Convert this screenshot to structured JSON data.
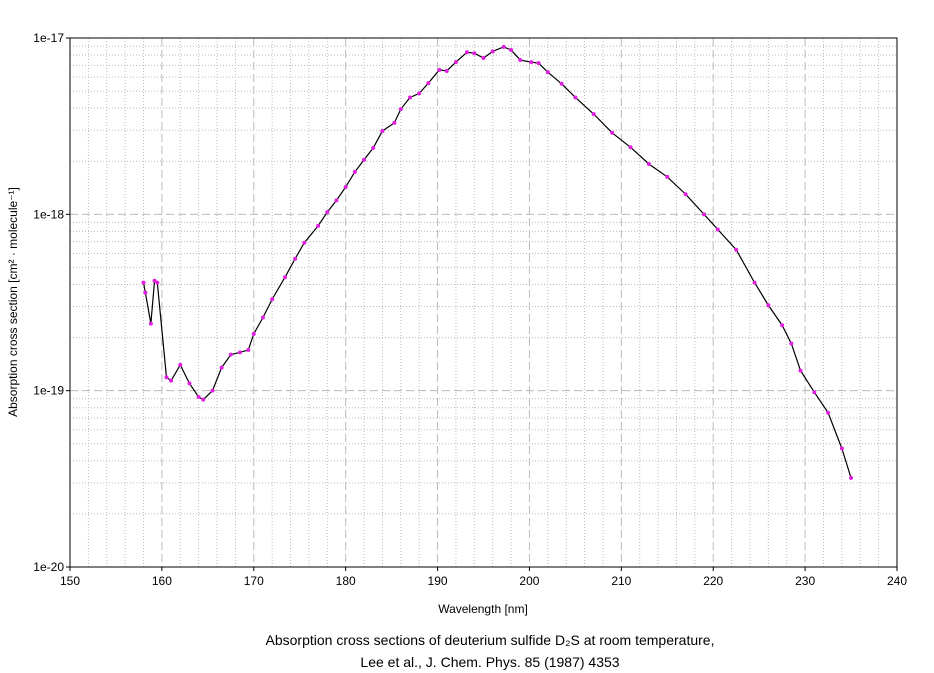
{
  "chart_data": {
    "type": "line",
    "xlabel": "Wavelength [nm]",
    "ylabel": "Absorption cross section [cm² · molecule⁻¹]",
    "caption": [
      "Absorption cross sections of deuterium sulfide D₂S at room temperature,",
      "Lee et al., J. Chem. Phys. 85 (1987) 4353"
    ],
    "xlim": [
      150,
      240
    ],
    "xticks": [
      150,
      160,
      170,
      180,
      190,
      200,
      210,
      220,
      230,
      240
    ],
    "ylim": [
      1e-20,
      1e-17
    ],
    "yticks": [
      1e-20,
      1e-19,
      1e-18,
      1e-17
    ],
    "log_y": true,
    "grid": true,
    "line_color": "#000000",
    "marker_color": "#e020e0",
    "x": [
      158.0,
      158.2,
      158.8,
      159.2,
      159.5,
      160.5,
      161,
      162,
      163,
      164,
      164.5,
      165.5,
      166.5,
      167.5,
      168.5,
      169.4,
      170,
      171,
      172,
      173.4,
      174.5,
      175.5,
      177,
      178,
      179,
      180,
      181,
      182,
      183,
      184,
      185.3,
      186,
      187,
      188,
      189,
      190.2,
      191,
      192,
      193.2,
      194,
      195,
      196,
      197.2,
      198,
      199,
      200.2,
      201,
      202,
      203.5,
      205,
      207,
      209,
      211,
      213,
      215,
      217,
      219,
      220.5,
      222.5,
      224.5,
      226,
      227.5,
      228.5,
      229.5,
      231,
      232.5,
      234,
      235
    ],
    "values": [
      4.1e-19,
      3.6e-19,
      2.4e-19,
      4.2e-19,
      4.1e-19,
      1.19e-19,
      1.14e-19,
      1.4e-19,
      1.1e-19,
      9.2e-20,
      8.9e-20,
      1e-19,
      1.35e-19,
      1.6e-19,
      1.65e-19,
      1.7e-19,
      2.1e-19,
      2.6e-19,
      3.3e-19,
      4.4e-19,
      5.6e-19,
      6.9e-19,
      8.6e-19,
      1.03e-18,
      1.2e-18,
      1.43e-18,
      1.74e-18,
      2.04e-18,
      2.38e-18,
      2.97e-18,
      3.3e-18,
      3.95e-18,
      4.6e-18,
      4.85e-18,
      5.55e-18,
      6.6e-18,
      6.5e-18,
      7.3e-18,
      8.3e-18,
      8.2e-18,
      7.7e-18,
      8.4e-18,
      8.9e-18,
      8.55e-18,
      7.5e-18,
      7.3e-18,
      7.2e-18,
      6.4e-18,
      5.5e-18,
      4.6e-18,
      3.7e-18,
      2.9e-18,
      2.4e-18,
      1.93e-18,
      1.63e-18,
      1.3e-18,
      1e-18,
      8.2e-19,
      6.3e-19,
      4.1e-19,
      3.05e-19,
      2.35e-19,
      1.85e-19,
      1.3e-19,
      9.8e-20,
      7.5e-20,
      4.7e-20,
      3.2e-20
    ]
  }
}
